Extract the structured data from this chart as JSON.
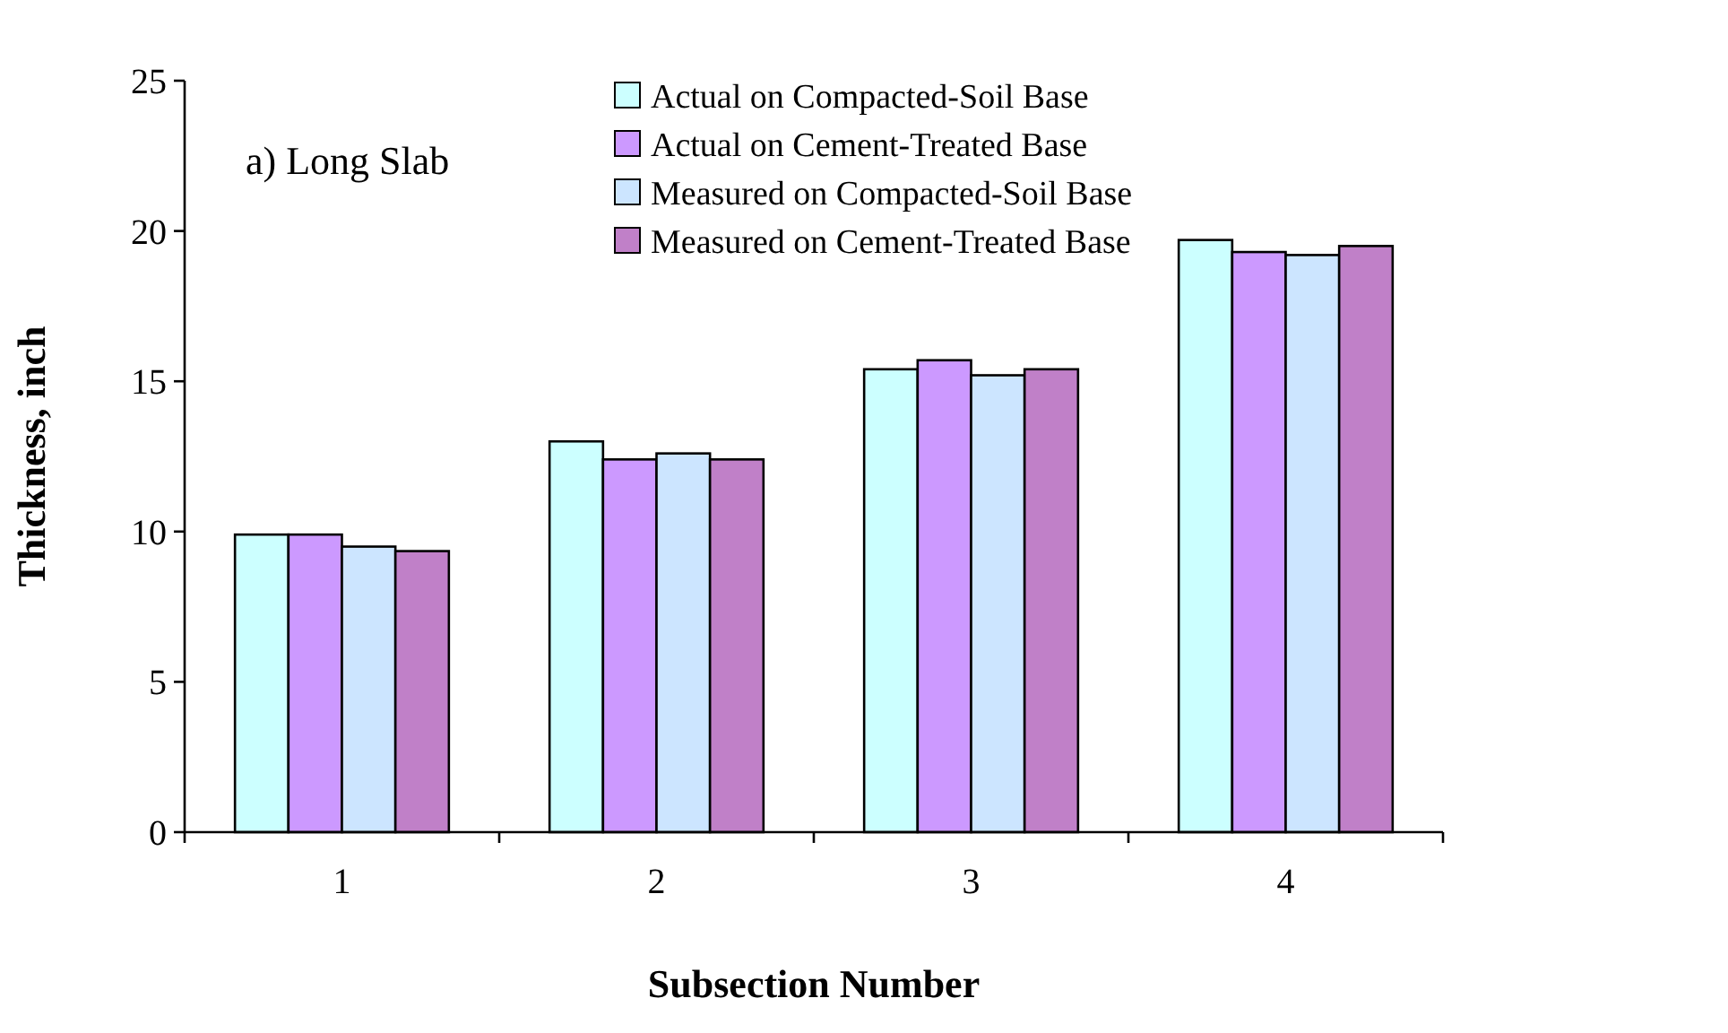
{
  "chart_data": {
    "type": "bar",
    "xlabel": "Subsection Number",
    "ylabel": "Thickness, inch",
    "annotations": [
      "a) Long Slab"
    ],
    "categories": [
      "1",
      "2",
      "3",
      "4"
    ],
    "series": [
      {
        "name": "Actual on Compacted-Soil Base",
        "color": "#ccffff",
        "values": [
          9.9,
          13.0,
          15.4,
          19.7
        ]
      },
      {
        "name": "Actual on Cement-Treated Base",
        "color": "#cc99ff",
        "values": [
          9.9,
          12.4,
          15.7,
          19.3
        ]
      },
      {
        "name": "Measured on Compacted-Soil Base",
        "color": "#cce5ff",
        "values": [
          9.5,
          12.6,
          15.2,
          19.2
        ]
      },
      {
        "name": "Measured on Cement-Treated Base",
        "color": "#c080c8",
        "values": [
          9.35,
          12.4,
          15.4,
          19.5
        ]
      }
    ],
    "ylim": [
      0,
      25
    ],
    "yticks": [
      0,
      5,
      10,
      15,
      20,
      25
    ],
    "grid": false,
    "legend": "top"
  }
}
